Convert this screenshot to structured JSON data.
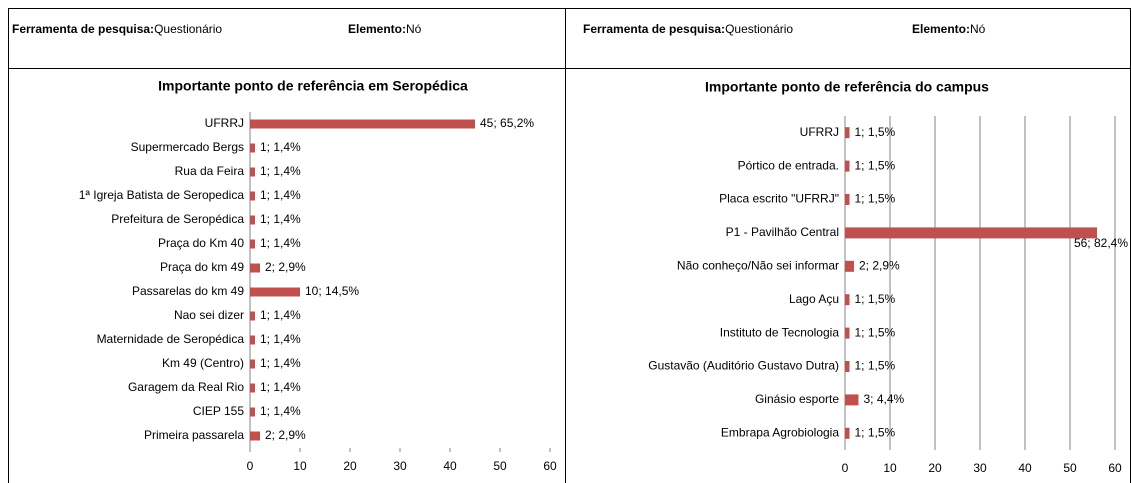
{
  "panels": [
    {
      "tool_label": "Ferramenta de pesquisa:",
      "tool": "Questionário",
      "element_label": "Elemento:",
      "element": "Nó"
    },
    {
      "tool_label": "Ferramenta de pesquisa:",
      "tool": "Questionário",
      "element_label": "Elemento:",
      "element": "Nó"
    }
  ],
  "chart_data": [
    {
      "type": "bar",
      "orientation": "horizontal",
      "title": "Importante ponto de referência em Seropédica",
      "categories": [
        "UFRRJ",
        "Supermercado Bergs",
        "Rua da Feira",
        "1ª Igreja Batista de Seropedica",
        "Prefeitura de Seropédica",
        "Praça do Km 40",
        "Praça do km 49",
        "Passarelas do km 49",
        "Nao sei dizer",
        "Maternidade de Seropédica",
        "Km 49 (Centro)",
        "Garagem da Real Rio",
        "CIEP 155",
        "Primeira passarela"
      ],
      "values": [
        45,
        1,
        1,
        1,
        1,
        1,
        2,
        10,
        1,
        1,
        1,
        1,
        1,
        2
      ],
      "value_labels": [
        "45; 65,2%",
        "1; 1,4%",
        "1; 1,4%",
        "1; 1,4%",
        "1; 1,4%",
        "1; 1,4%",
        "2; 2,9%",
        "10; 14,5%",
        "1; 1,4%",
        "1; 1,4%",
        "1; 1,4%",
        "1; 1,4%",
        "1; 1,4%",
        "2; 2,9%"
      ],
      "color": "#c0504d",
      "xlim": [
        0,
        60
      ],
      "xticks": [
        0,
        10,
        20,
        30,
        40,
        50,
        60
      ],
      "grid": false
    },
    {
      "type": "bar",
      "orientation": "horizontal",
      "title": "Importante ponto de referência do campus",
      "categories": [
        "UFRRJ",
        "Pórtico de entrada.",
        "Placa escrito \"UFRRJ\"",
        "P1 - Pavilhão Central",
        "Não conheço/Não sei informar",
        "Lago Açu",
        "Instituto de Tecnologia",
        "Gustavão (Auditório Gustavo Dutra)",
        "Ginásio esporte",
        "Embrapa Agrobiologia"
      ],
      "values": [
        1,
        1,
        1,
        56,
        2,
        1,
        1,
        1,
        3,
        1
      ],
      "value_labels": [
        "1; 1,5%",
        "1; 1,5%",
        "1; 1,5%",
        "56; 82,4%",
        "2; 2,9%",
        "1; 1,5%",
        "1; 1,5%",
        "1; 1,5%",
        "3; 4,4%",
        "1; 1,5%"
      ],
      "color": "#c0504d",
      "xlim": [
        0,
        60
      ],
      "xticks": [
        0,
        10,
        20,
        30,
        40,
        50,
        60
      ],
      "grid": true
    }
  ]
}
